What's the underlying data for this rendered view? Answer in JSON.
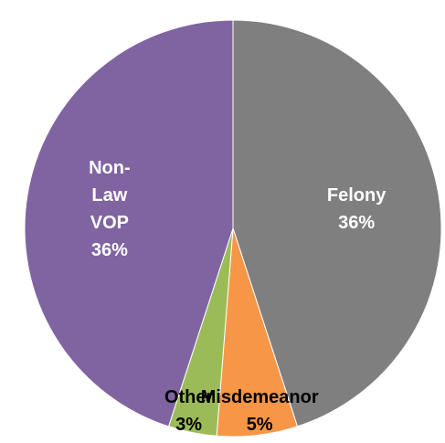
{
  "chart_data": {
    "type": "pie",
    "categories": [
      "Felony",
      "Misdemeanor",
      "Other",
      "Non-Law VOP"
    ],
    "values": [
      36,
      5,
      3,
      36
    ],
    "value_labels": [
      "36%",
      "5%",
      "3%",
      "36%"
    ],
    "colors": [
      "#7f7f7f",
      "#f79646",
      "#9bbb59",
      "#8064a2"
    ],
    "label_colors": [
      "#ffffff",
      "#000000",
      "#000000",
      "#ffffff"
    ]
  }
}
